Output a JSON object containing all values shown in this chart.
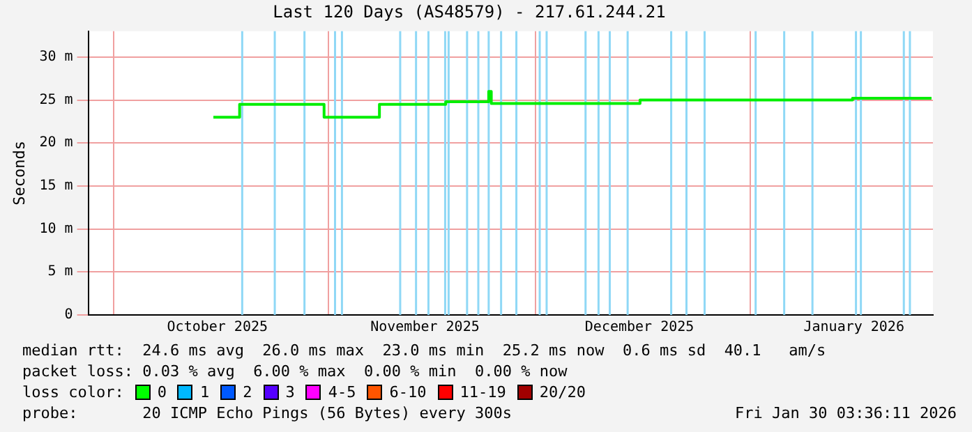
{
  "chart_data": {
    "type": "step",
    "title": "Last 120 Days (AS48579) - 217.61.244.21",
    "ylabel": "Seconds",
    "x": [
      "2025-10-15T10:00",
      "2025-10-19T05:00",
      "2025-10-31T10:00",
      "2025-11-08T10:00",
      "2025-11-18T00:00",
      "2025-11-24T05:00",
      "2025-11-24T14:00",
      "2025-12-16T02:00",
      "2026-01-15T19:00",
      "2026-01-27T05:00"
    ],
    "series": [
      {
        "color": "#00ee00",
        "values": [
          23.0,
          24.5,
          23.0,
          24.5,
          24.8,
          26.0,
          24.6,
          25.0,
          25.2,
          25.2
        ]
      }
    ],
    "xlim": [
      "2025-09-27T08:00",
      "2026-01-27T10:00"
    ],
    "xticks": [
      {
        "value": "2025-10-01",
        "label": null
      },
      {
        "value": "2025-10-16",
        "label": "October 2025"
      },
      {
        "value": "2025-11-01",
        "label": null
      },
      {
        "value": "2025-11-15",
        "label": "November 2025"
      },
      {
        "value": "2025-12-01",
        "label": null
      },
      {
        "value": "2025-12-16",
        "label": "December 2025"
      },
      {
        "value": "2026-01-01",
        "label": null
      },
      {
        "value": "2026-01-16",
        "label": "January 2026"
      }
    ],
    "ylim": [
      0,
      33
    ],
    "yticks": [
      0,
      {
        "value": 5,
        "label": "5 m"
      },
      {
        "value": 10,
        "label": "10 m"
      },
      {
        "value": 15,
        "label": "15 m"
      },
      {
        "value": 20,
        "label": "20 m"
      },
      {
        "value": 25,
        "label": "25 m"
      },
      {
        "value": 30,
        "label": "30 m"
      }
    ],
    "grid": true,
    "legend": false,
    "marker": "none",
    "line_style": "solid",
    "ref_lines": [
      {
        "axis": "x",
        "value": "2025-10-19T14:00",
        "color": "#8fd8f6"
      },
      {
        "axis": "x",
        "value": "2025-10-24T07:00",
        "color": "#8fd8f6"
      },
      {
        "axis": "x",
        "value": "2025-10-28T14:00",
        "color": "#8fd8f6"
      },
      {
        "axis": "x",
        "value": "2025-11-02T00:00",
        "color": "#8fd8f6"
      },
      {
        "axis": "x",
        "value": "2025-11-03T00:00",
        "color": "#8fd8f6"
      },
      {
        "axis": "x",
        "value": "2025-11-11T10:00",
        "color": "#8fd8f6"
      },
      {
        "axis": "x",
        "value": "2025-11-13T17:00",
        "color": "#8fd8f6"
      },
      {
        "axis": "x",
        "value": "2025-11-15T12:00",
        "color": "#8fd8f6"
      },
      {
        "axis": "x",
        "value": "2025-11-17T22:00",
        "color": "#8fd8f6"
      },
      {
        "axis": "x",
        "value": "2025-11-18T10:00",
        "color": "#8fd8f6"
      },
      {
        "axis": "x",
        "value": "2025-11-21T02:00",
        "color": "#8fd8f6"
      },
      {
        "axis": "x",
        "value": "2025-11-22T17:00",
        "color": "#8fd8f6"
      },
      {
        "axis": "x",
        "value": "2025-11-24T05:00",
        "color": "#8fd8f6"
      },
      {
        "axis": "x",
        "value": "2025-11-26T00:00",
        "color": "#8fd8f6"
      },
      {
        "axis": "x",
        "value": "2025-11-28T05:00",
        "color": "#8fd8f6"
      },
      {
        "axis": "x",
        "value": "2025-12-01T14:00",
        "color": "#8fd8f6"
      },
      {
        "axis": "x",
        "value": "2025-12-02T14:00",
        "color": "#8fd8f6"
      },
      {
        "axis": "x",
        "value": "2025-12-08T05:00",
        "color": "#8fd8f6"
      },
      {
        "axis": "x",
        "value": "2025-12-10T02:00",
        "color": "#8fd8f6"
      },
      {
        "axis": "x",
        "value": "2025-12-11T17:00",
        "color": "#8fd8f6"
      },
      {
        "axis": "x",
        "value": "2025-12-14T07:00",
        "color": "#8fd8f6"
      },
      {
        "axis": "x",
        "value": "2025-12-20T14:00",
        "color": "#8fd8f6"
      },
      {
        "axis": "x",
        "value": "2025-12-22T19:00",
        "color": "#8fd8f6"
      },
      {
        "axis": "x",
        "value": "2025-12-25T10:00",
        "color": "#8fd8f6"
      },
      {
        "axis": "x",
        "value": "2026-01-01T19:00",
        "color": "#8fd8f6"
      },
      {
        "axis": "x",
        "value": "2026-01-05T22:00",
        "color": "#8fd8f6"
      },
      {
        "axis": "x",
        "value": "2026-01-10T00:00",
        "color": "#8fd8f6"
      },
      {
        "axis": "x",
        "value": "2026-01-16T07:00",
        "color": "#8fd8f6"
      },
      {
        "axis": "x",
        "value": "2026-01-17T00:00",
        "color": "#8fd8f6"
      },
      {
        "axis": "x",
        "value": "2026-01-23T05:00",
        "color": "#8fd8f6"
      },
      {
        "axis": "x",
        "value": "2026-01-24T02:00",
        "color": "#8fd8f6"
      }
    ],
    "annotations": [
      "median rtt:  24.6 ms avg  26.0 ms max  23.0 ms min  25.2 ms now  0.6 ms sd  40.1   am/s",
      "packet loss: 0.03 % avg  6.00 % max  0.00 % min  0.00 % now",
      "loss color:",
      "0",
      "1",
      "2",
      "3",
      "4-5",
      "6-10",
      "11-19",
      "20/20",
      "probe:       20 ICMP Echo Pings (56 Bytes) every 300s",
      "Fri Jan 30 03:36:11 2026"
    ]
  }
}
